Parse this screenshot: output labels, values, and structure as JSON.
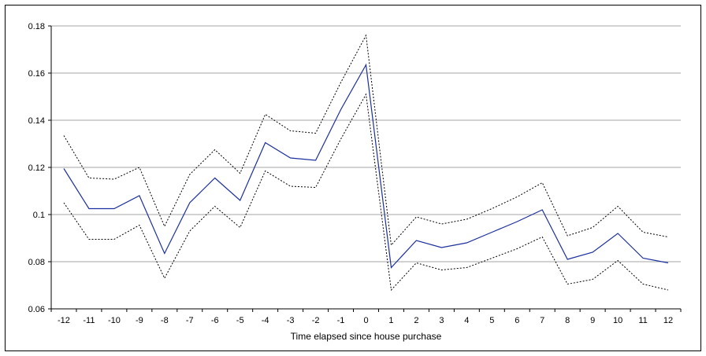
{
  "chart_data": {
    "type": "line",
    "xlabel": "Time elapsed since house purchase",
    "ylabel": "",
    "ylim": [
      0.06,
      0.18
    ],
    "yticks": [
      0.06,
      0.08,
      0.1,
      0.12,
      0.14,
      0.16,
      0.18
    ],
    "ytick_labels": [
      "0.06",
      "0.08",
      "0.1",
      "0.12",
      "0.14",
      "0.16",
      "0.18"
    ],
    "x": [
      -12,
      -11,
      -10,
      -9,
      -8,
      -7,
      -6,
      -5,
      -4,
      -3,
      -2,
      -1,
      0,
      1,
      2,
      3,
      4,
      5,
      6,
      7,
      8,
      9,
      10,
      11,
      12
    ],
    "xtick_labels": [
      "-12",
      "-11",
      "-10",
      "-9",
      "-8",
      "-7",
      "-6",
      "-5",
      "-4",
      "-3",
      "-2",
      "-1",
      "0",
      "1",
      "2",
      "3",
      "4",
      "5",
      "6",
      "7",
      "8",
      "9",
      "10",
      "11",
      "12"
    ],
    "grid": "horizontal",
    "legend": "none",
    "series": [
      {
        "key": "estimate",
        "color": "#1c2f9e",
        "style": "solid",
        "values": [
          0.1195,
          0.1025,
          0.1025,
          0.108,
          0.0835,
          0.105,
          0.1155,
          0.106,
          0.1305,
          0.124,
          0.123,
          0.1445,
          0.1635,
          0.0775,
          0.089,
          0.086,
          0.088,
          0.0925,
          0.097,
          0.102,
          0.081,
          0.084,
          0.092,
          0.0815,
          0.0795
        ]
      },
      {
        "key": "upper-bound",
        "color": "#000000",
        "style": "dotted",
        "values": [
          0.1335,
          0.1155,
          0.115,
          0.12,
          0.095,
          0.117,
          0.1275,
          0.1175,
          0.1425,
          0.1355,
          0.1345,
          0.156,
          0.176,
          0.087,
          0.099,
          0.096,
          0.098,
          0.1025,
          0.1075,
          0.1135,
          0.091,
          0.0945,
          0.1035,
          0.0925,
          0.0905
        ]
      },
      {
        "key": "lower-bound",
        "color": "#000000",
        "style": "dotted",
        "values": [
          0.105,
          0.0895,
          0.0895,
          0.0955,
          0.073,
          0.093,
          0.1035,
          0.0945,
          0.1185,
          0.112,
          0.1115,
          0.132,
          0.151,
          0.068,
          0.0795,
          0.0765,
          0.0775,
          0.0815,
          0.0855,
          0.0905,
          0.0705,
          0.0725,
          0.0805,
          0.0705,
          0.068
        ]
      }
    ]
  }
}
